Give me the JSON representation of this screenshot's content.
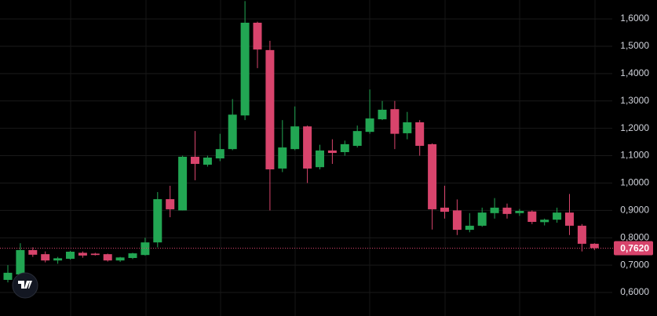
{
  "chart_data": {
    "type": "candlestick",
    "categories": [
      null,
      null,
      null,
      null,
      null,
      null,
      null,
      null,
      null,
      null,
      null,
      null,
      null,
      null,
      null,
      null,
      null,
      null,
      null,
      null,
      null,
      null,
      null,
      null,
      null,
      null,
      null,
      null,
      null,
      null,
      null,
      null,
      null,
      null,
      null,
      null,
      null,
      null,
      null,
      null,
      null,
      null,
      null,
      null,
      null,
      null,
      null,
      null
    ],
    "open": [
      0.646,
      0.666,
      0.755,
      0.74,
      0.717,
      0.723,
      0.745,
      0.742,
      0.74,
      0.717,
      0.726,
      0.737,
      0.783,
      0.941,
      0.9,
      1.096,
      1.067,
      1.09,
      1.124,
      1.247,
      1.586,
      1.486,
      1.053,
      1.124,
      1.207,
      1.058,
      1.119,
      1.113,
      1.136,
      1.187,
      1.233,
      1.27,
      1.182,
      1.222,
      1.142,
      0.91,
      0.9,
      0.829,
      0.844,
      0.89,
      0.91,
      0.89,
      0.896,
      0.857,
      0.866,
      0.892,
      0.844,
      0.778
    ],
    "high": [
      0.7,
      0.78,
      0.765,
      0.75,
      0.73,
      0.752,
      0.75,
      0.745,
      0.742,
      0.73,
      0.745,
      0.8,
      0.967,
      0.99,
      1.1,
      1.19,
      1.1,
      1.18,
      1.307,
      1.665,
      1.59,
      1.52,
      1.23,
      1.28,
      1.21,
      1.14,
      1.16,
      1.155,
      1.21,
      1.342,
      1.3,
      1.3,
      1.26,
      1.23,
      1.145,
      0.99,
      0.94,
      0.89,
      0.91,
      0.945,
      0.925,
      0.905,
      0.9,
      0.87,
      0.91,
      0.96,
      0.85,
      0.78
    ],
    "low": [
      0.637,
      0.66,
      0.73,
      0.71,
      0.705,
      0.72,
      0.727,
      0.735,
      0.713,
      0.712,
      0.722,
      0.735,
      0.765,
      0.875,
      0.9,
      1.01,
      1.06,
      1.08,
      1.12,
      1.23,
      1.42,
      0.9,
      1.04,
      1.12,
      1.0,
      1.05,
      1.07,
      1.1,
      1.13,
      1.18,
      1.23,
      1.124,
      1.16,
      1.1,
      0.83,
      0.87,
      0.81,
      0.82,
      0.84,
      0.87,
      0.87,
      0.88,
      0.85,
      0.845,
      0.855,
      0.81,
      0.75,
      0.755
    ],
    "close": [
      0.672,
      0.755,
      0.738,
      0.717,
      0.725,
      0.749,
      0.735,
      0.737,
      0.717,
      0.728,
      0.743,
      0.783,
      0.941,
      0.904,
      1.096,
      1.07,
      1.093,
      1.124,
      1.25,
      1.586,
      1.488,
      1.05,
      1.13,
      1.207,
      1.053,
      1.119,
      1.11,
      1.142,
      1.19,
      1.236,
      1.268,
      1.18,
      1.222,
      1.136,
      0.904,
      0.895,
      0.829,
      0.844,
      0.892,
      0.91,
      0.887,
      0.898,
      0.858,
      0.866,
      0.892,
      0.844,
      0.778,
      0.762
    ],
    "up_color": "#22a653",
    "down_color": "#d8446c",
    "ylim": [
      0.514,
      1.669
    ],
    "yticks": [
      {
        "value": 0.6,
        "label": "0,6000"
      },
      {
        "value": 0.7,
        "label": "0,7000"
      },
      {
        "value": 0.8,
        "label": "0,8000"
      },
      {
        "value": 0.9,
        "label": "0,9000"
      },
      {
        "value": 1.0,
        "label": "1,0000"
      },
      {
        "value": 1.1,
        "label": "1,1000"
      },
      {
        "value": 1.2,
        "label": "1,2000"
      },
      {
        "value": 1.3,
        "label": "1,3000"
      },
      {
        "value": 1.4,
        "label": "1,4000"
      },
      {
        "value": 1.5,
        "label": "1,5000"
      },
      {
        "value": 1.6,
        "label": "1,6000"
      }
    ],
    "grid": true,
    "last_price": {
      "value": 0.762,
      "label": "0,7620"
    }
  }
}
